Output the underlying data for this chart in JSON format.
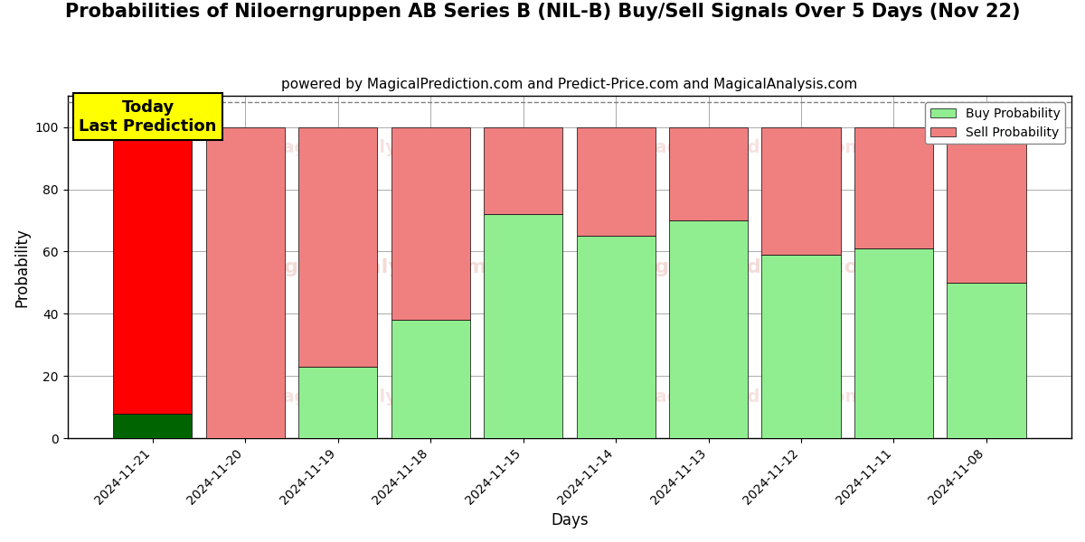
{
  "title": "Probabilities of Niloerngruppen AB Series B (NIL-B) Buy/Sell Signals Over 5 Days (Nov 22)",
  "subtitle": "powered by MagicalPrediction.com and Predict-Price.com and MagicalAnalysis.com",
  "xlabel": "Days",
  "ylabel": "Probability",
  "categories": [
    "2024-11-21",
    "2024-11-20",
    "2024-11-19",
    "2024-11-18",
    "2024-11-15",
    "2024-11-14",
    "2024-11-13",
    "2024-11-12",
    "2024-11-11",
    "2024-11-08"
  ],
  "buy_values": [
    8,
    0,
    23,
    38,
    72,
    65,
    70,
    59,
    61,
    50
  ],
  "sell_values": [
    92,
    100,
    77,
    62,
    28,
    35,
    30,
    41,
    39,
    50
  ],
  "buy_color_today": "#006400",
  "sell_color_today": "#ff0000",
  "buy_color_normal": "#90EE90",
  "sell_color_normal": "#f08080",
  "today_index": 0,
  "today_label": "Today\nLast Prediction",
  "today_box_color": "#ffff00",
  "today_box_edgecolor": "#000000",
  "legend_buy": "Buy Probability",
  "legend_sell": "Sell Probability",
  "ylim": [
    0,
    110
  ],
  "yticks": [
    0,
    20,
    40,
    60,
    80,
    100
  ],
  "dashed_line_y": 108,
  "background_color": "#ffffff",
  "grid_color": "#aaaaaa",
  "title_fontsize": 15,
  "subtitle_fontsize": 11,
  "bar_width": 0.85
}
